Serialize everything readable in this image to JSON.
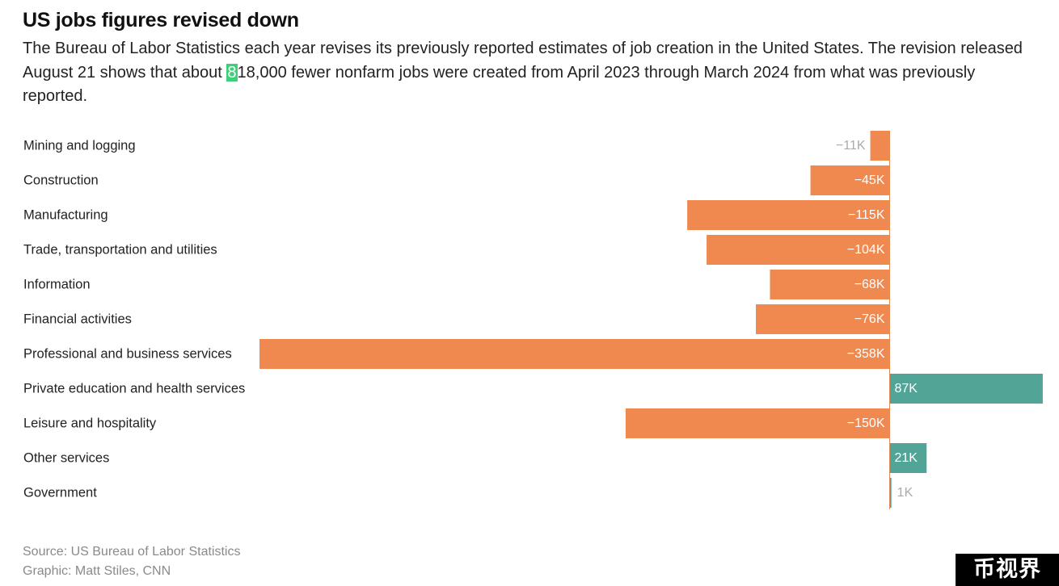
{
  "header": {
    "title": "US jobs figures revised down",
    "subtitle_before": "The Bureau of Labor Statistics each year revises its previously reported estimates of job creation in the United States. The revision released August 21 shows that about ",
    "subtitle_highlight": "8",
    "subtitle_after": "18,000 fewer nonfarm jobs were created from April 2023 through March 2024 from what was previously reported."
  },
  "footer": {
    "source": "Source: US Bureau of Labor Statistics",
    "graphic": "Graphic: Matt Stiles, CNN"
  },
  "watermark": "币视界",
  "colors": {
    "negative": "#f0894f",
    "positive": "#52a596",
    "inside_label": "#ffffff",
    "small_label": "#aaaaaa",
    "axis": "#e08a5a"
  },
  "chart_data": {
    "type": "bar",
    "orientation": "horizontal",
    "categories": [
      "Mining and logging",
      "Construction",
      "Manufacturing",
      "Trade, transportation and utilities",
      "Information",
      "Financial activities",
      "Professional and business services",
      "Private education and health services",
      "Leisure and hospitality",
      "Other services",
      "Government"
    ],
    "values": [
      -11,
      -45,
      -115,
      -104,
      -68,
      -76,
      -358,
      87,
      -150,
      21,
      1
    ],
    "value_labels": [
      "−11K",
      "−45K",
      "−115K",
      "−104K",
      "−68K",
      "−76K",
      "−358K",
      "87K",
      "−150K",
      "21K",
      "1K"
    ],
    "unit": "thousands of jobs",
    "xlim": [
      -358,
      87
    ],
    "grid": false,
    "legend": "none"
  }
}
